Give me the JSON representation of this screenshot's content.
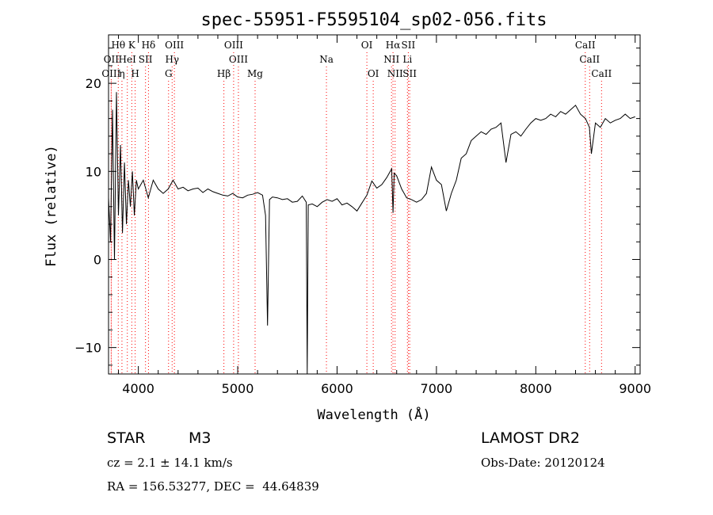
{
  "chart_data": {
    "type": "line",
    "title": "spec-55951-F5595104_sp02-056.fits",
    "xlabel": "Wavelength (Å)",
    "ylabel": "Flux (relative)",
    "xlim": [
      3700,
      9050
    ],
    "ylim": [
      -13,
      25.5
    ],
    "x_ticks": [
      4000,
      5000,
      6000,
      7000,
      8000,
      9000
    ],
    "y_ticks": [
      -10,
      0,
      10,
      20
    ],
    "grid": false,
    "line_color": "#000000",
    "marker_color": "#ff0000",
    "series": [
      {
        "x": [
          3700,
          3720,
          3740,
          3760,
          3780,
          3800,
          3820,
          3840,
          3860,
          3880,
          3900,
          3920,
          3940,
          3960,
          3980,
          4000,
          4050,
          4100,
          4150,
          4200,
          4250,
          4300,
          4350,
          4400,
          4450,
          4500,
          4550,
          4600,
          4650,
          4700,
          4750,
          4800,
          4850,
          4900,
          4950,
          5000,
          5050,
          5100,
          5150,
          5200,
          5250,
          5280,
          5300,
          5320,
          5350,
          5400,
          5450,
          5500,
          5550,
          5600,
          5650,
          5690,
          5700,
          5710,
          5750,
          5800,
          5850,
          5900,
          5950,
          6000,
          6050,
          6100,
          6150,
          6200,
          6250,
          6300,
          6350,
          6400,
          6450,
          6500,
          6550,
          6563,
          6575,
          6600,
          6650,
          6700,
          6750,
          6800,
          6850,
          6900,
          6950,
          7000,
          7050,
          7100,
          7150,
          7200,
          7250,
          7300,
          7350,
          7400,
          7450,
          7500,
          7550,
          7600,
          7650,
          7700,
          7750,
          7800,
          7850,
          7900,
          7950,
          8000,
          8050,
          8100,
          8150,
          8200,
          8250,
          8300,
          8350,
          8400,
          8450,
          8500,
          8540,
          8560,
          8600,
          8650,
          8700,
          8750,
          8800,
          8850,
          8900,
          8950,
          9000
        ],
        "y": [
          7,
          2,
          17,
          0,
          19,
          5,
          13,
          3,
          11,
          4,
          9,
          6,
          10,
          5,
          9,
          8,
          9,
          7,
          9,
          8,
          7.5,
          8,
          9,
          8,
          8.2,
          7.8,
          8,
          8.1,
          7.6,
          8,
          7.7,
          7.5,
          7.3,
          7.2,
          7.5,
          7.1,
          7,
          7.3,
          7.4,
          7.6,
          7.3,
          5,
          -7.5,
          6.8,
          7.1,
          7,
          6.8,
          6.9,
          6.5,
          6.6,
          7.2,
          6.5,
          -13,
          6.2,
          6.3,
          6,
          6.5,
          6.8,
          6.6,
          6.9,
          6.2,
          6.4,
          6.0,
          5.5,
          6.4,
          7.3,
          8.9,
          8.1,
          8.5,
          9.3,
          10.3,
          5.3,
          9.8,
          9.5,
          8.0,
          7.0,
          6.8,
          6.5,
          6.8,
          7.5,
          10.5,
          9.0,
          8.5,
          5.5,
          7.5,
          9.0,
          11.5,
          12.0,
          13.5,
          14.0,
          14.5,
          14.2,
          14.8,
          15.0,
          15.5,
          11.0,
          14.2,
          14.5,
          14.0,
          14.8,
          15.5,
          16.0,
          15.8,
          16.0,
          16.5,
          16.2,
          16.8,
          16.5,
          17.0,
          17.5,
          16.5,
          16.0,
          15.0,
          12.0,
          15.5,
          15.0,
          16.0,
          15.5,
          15.8,
          16.0,
          16.5,
          16.0,
          16.2
        ]
      }
    ],
    "lines": [
      {
        "label": "Hθ",
        "x": 3798,
        "row": 1
      },
      {
        "label": "K",
        "x": 3934,
        "row": 1
      },
      {
        "label": "Hδ",
        "x": 4102,
        "row": 1
      },
      {
        "label": "OIII",
        "x": 4363,
        "row": 1
      },
      {
        "label": "OIII",
        "x": 4959,
        "row": 1
      },
      {
        "label": "OI",
        "x": 6300,
        "row": 1
      },
      {
        "label": "Hα",
        "x": 6563,
        "row": 1
      },
      {
        "label": "SII",
        "x": 6717,
        "row": 1
      },
      {
        "label": "CaII",
        "x": 8498,
        "row": 1
      },
      {
        "label": "OII",
        "x": 3727,
        "row": 2
      },
      {
        "label": "HeI",
        "x": 3889,
        "row": 2
      },
      {
        "label": "SII",
        "x": 4072,
        "row": 2
      },
      {
        "label": "Hγ",
        "x": 4340,
        "row": 2
      },
      {
        "label": "OIII",
        "x": 5007,
        "row": 2
      },
      {
        "label": "Na",
        "x": 5893,
        "row": 2
      },
      {
        "label": "NII",
        "x": 6548,
        "row": 2
      },
      {
        "label": "Li",
        "x": 6708,
        "row": 2
      },
      {
        "label": "CaII",
        "x": 8542,
        "row": 2
      },
      {
        "label": "OIII",
        "x": 3727,
        "row": 3
      },
      {
        "label": "η",
        "x": 3835,
        "row": 3
      },
      {
        "label": "H",
        "x": 3968,
        "row": 3
      },
      {
        "label": "G",
        "x": 4304,
        "row": 3
      },
      {
        "label": "Hβ",
        "x": 4861,
        "row": 3
      },
      {
        "label": "Mg",
        "x": 5175,
        "row": 3
      },
      {
        "label": "OI",
        "x": 6364,
        "row": 3
      },
      {
        "label": "NII",
        "x": 6584,
        "row": 3
      },
      {
        "label": "SII",
        "x": 6731,
        "row": 3
      },
      {
        "label": "CaII",
        "x": 8662,
        "row": 3
      }
    ]
  },
  "info": {
    "object_class": "STAR",
    "subclass": "M3",
    "survey": "LAMOST DR2",
    "cz": "cz = 2.1 ± 14.1 km/s",
    "obs_date": "Obs-Date: 20120124",
    "radec": "RA = 156.53277, DEC =  44.64839"
  }
}
